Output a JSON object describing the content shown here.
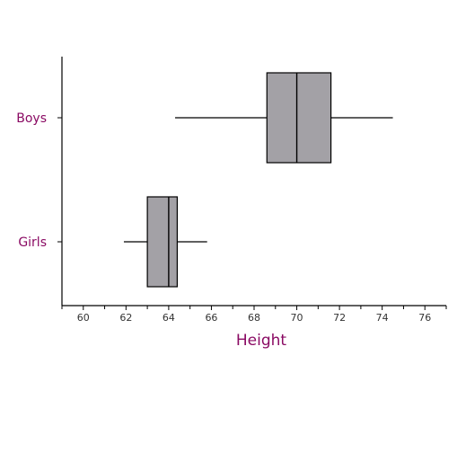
{
  "chart_data": {
    "type": "boxplot",
    "orientation": "horizontal",
    "xlabel": "Height",
    "ylabel": "",
    "title": "",
    "xlim": [
      59,
      77
    ],
    "x_ticks": [
      60,
      62,
      64,
      66,
      68,
      70,
      72,
      74,
      76
    ],
    "x_minor_ticks": [
      59,
      61,
      63,
      65,
      67,
      69,
      71,
      73,
      75,
      77
    ],
    "grid": false,
    "legend": "none",
    "colors": {
      "box_fill": "#a3a1a6",
      "label": "#8a0a63",
      "line": "#000000"
    },
    "categories": [
      "Boys",
      "Girls"
    ],
    "boxes": [
      {
        "category": "Boys",
        "min": 64.3,
        "q1": 68.6,
        "median": 70.0,
        "q3": 71.6,
        "max": 74.5
      },
      {
        "category": "Girls",
        "min": 61.9,
        "q1": 63.0,
        "median": 64.0,
        "q3": 64.4,
        "max": 65.8
      }
    ]
  }
}
